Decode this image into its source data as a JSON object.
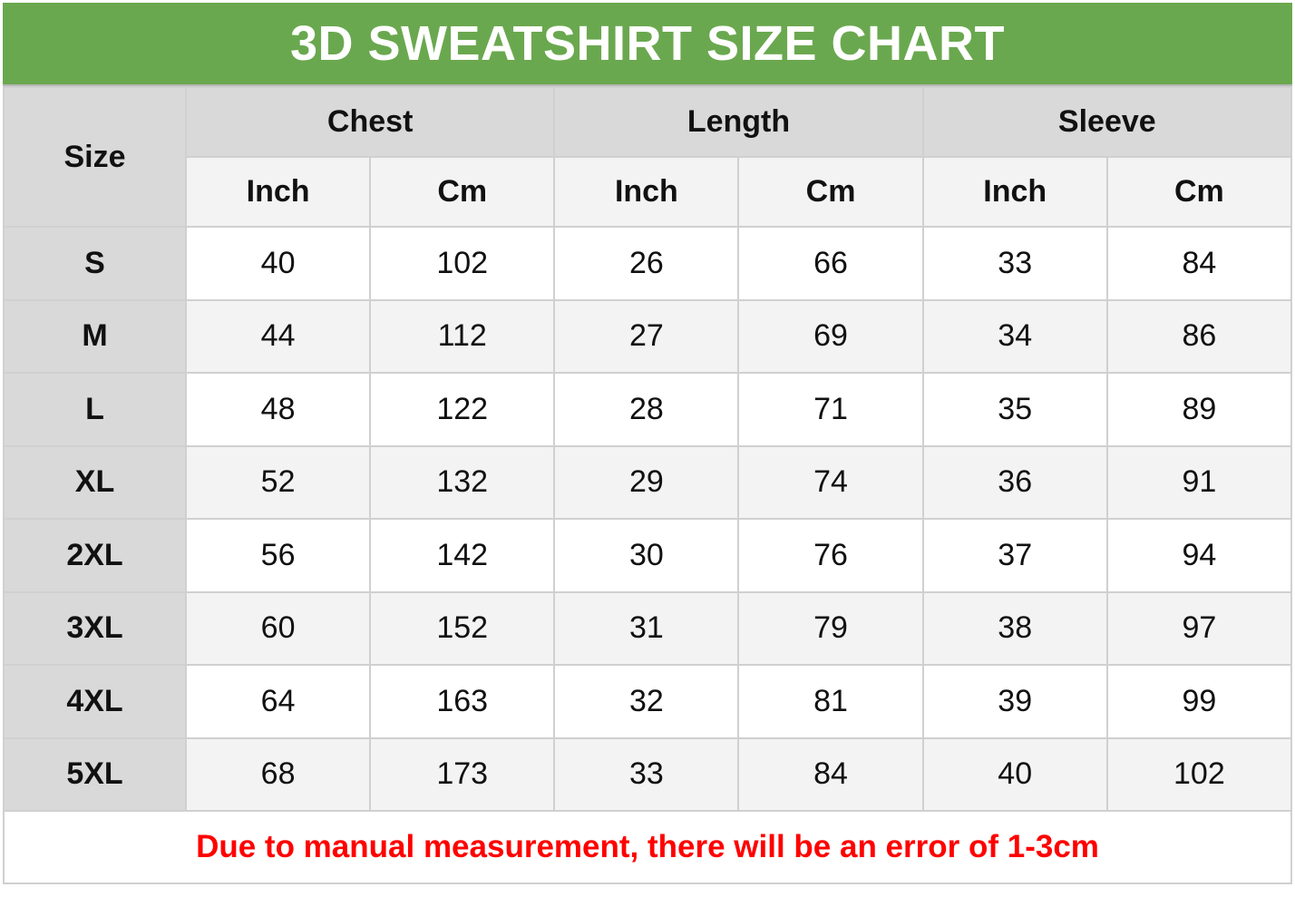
{
  "title": "3D SWEATSHIRT SIZE CHART",
  "colors": {
    "title_bg": "#6aa84f",
    "header_bg": "#d9d9d9",
    "note_text": "#ff0000"
  },
  "header": {
    "size_label": "Size",
    "groups": [
      "Chest",
      "Length",
      "Sleeve"
    ],
    "units": [
      "Inch",
      "Cm",
      "Inch",
      "Cm",
      "Inch",
      "Cm"
    ]
  },
  "rows": [
    {
      "size": "S",
      "values": [
        "40",
        "102",
        "26",
        "66",
        "33",
        "84"
      ]
    },
    {
      "size": "M",
      "values": [
        "44",
        "112",
        "27",
        "69",
        "34",
        "86"
      ]
    },
    {
      "size": "L",
      "values": [
        "48",
        "122",
        "28",
        "71",
        "35",
        "89"
      ]
    },
    {
      "size": "XL",
      "values": [
        "52",
        "132",
        "29",
        "74",
        "36",
        "91"
      ]
    },
    {
      "size": "2XL",
      "values": [
        "56",
        "142",
        "30",
        "76",
        "37",
        "94"
      ]
    },
    {
      "size": "3XL",
      "values": [
        "60",
        "152",
        "31",
        "79",
        "38",
        "97"
      ]
    },
    {
      "size": "4XL",
      "values": [
        "64",
        "163",
        "32",
        "81",
        "39",
        "99"
      ]
    },
    {
      "size": "5XL",
      "values": [
        "68",
        "173",
        "33",
        "84",
        "40",
        "102"
      ]
    }
  ],
  "note": "Due to manual measurement, there will be an error of 1-3cm"
}
